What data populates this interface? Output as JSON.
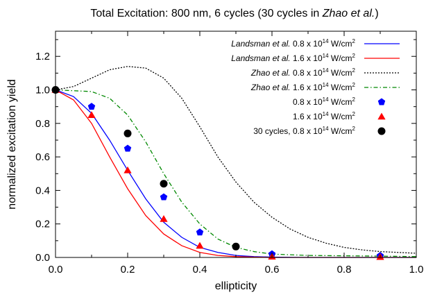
{
  "chart_data": {
    "type": "line",
    "title_parts": [
      {
        "text": "Total Excitation: 800 nm, 6 cycles (30 cycles in ",
        "italic": false
      },
      {
        "text": "Zhao et al.",
        "italic": true
      },
      {
        "text": ")",
        "italic": false
      }
    ],
    "xlabel": "ellipticity",
    "ylabel": "normalized excitation yield",
    "xlim": [
      0,
      1
    ],
    "ylim": [
      0,
      1.35
    ],
    "xticks": [
      0,
      0.2,
      0.4,
      0.6,
      0.8,
      1
    ],
    "xtick_labels": [
      "0.0",
      "0.2",
      "0.4",
      "0.6",
      "0.8",
      "1.0"
    ],
    "yticks": [
      0,
      0.2,
      0.4,
      0.6,
      0.8,
      1,
      1.2
    ],
    "ytick_labels": [
      "0.0",
      "0.2",
      "0.4",
      "0.6",
      "0.8",
      "1.0",
      "1.2"
    ],
    "grid": false,
    "legend_position": "top-right",
    "series": [
      {
        "name": "Landsman et al. 0.8 x 10^14 W/cm^2",
        "legend_parts": [
          {
            "text": "Landsman et al.",
            "italic": true
          },
          {
            "text": " 0.8 x 10",
            "italic": false
          },
          {
            "text": "14",
            "sup": true
          },
          {
            "text": " W/cm",
            "italic": false
          },
          {
            "text": "2",
            "sup": true
          }
        ],
        "kind": "line",
        "color": "#0000ff",
        "dash": "",
        "x": [
          0,
          0.05,
          0.1,
          0.15,
          0.2,
          0.25,
          0.3,
          0.35,
          0.4,
          0.45,
          0.5,
          0.55,
          0.6,
          0.7,
          0.8,
          0.9,
          1.0
        ],
        "y": [
          1.0,
          0.96,
          0.86,
          0.7,
          0.52,
          0.35,
          0.21,
          0.12,
          0.06,
          0.03,
          0.012,
          0.005,
          0.002,
          0.0,
          0.0,
          0.0,
          0.0
        ]
      },
      {
        "name": "Landsman et al. 1.6 x 10^14 W/cm^2",
        "legend_parts": [
          {
            "text": "Landsman et al.",
            "italic": true
          },
          {
            "text": " 1.6 x 10",
            "italic": false
          },
          {
            "text": "14",
            "sup": true
          },
          {
            "text": " W/cm",
            "italic": false
          },
          {
            "text": "2",
            "sup": true
          }
        ],
        "kind": "line",
        "color": "#ff0000",
        "dash": "",
        "x": [
          0,
          0.05,
          0.1,
          0.15,
          0.2,
          0.25,
          0.3,
          0.35,
          0.4,
          0.45,
          0.5,
          0.55,
          0.6,
          0.7,
          0.8,
          0.9,
          1.0
        ],
        "y": [
          1.0,
          0.94,
          0.8,
          0.6,
          0.41,
          0.25,
          0.14,
          0.07,
          0.03,
          0.012,
          0.005,
          0.002,
          0.0,
          0.0,
          0.0,
          0.0,
          0.0
        ]
      },
      {
        "name": "Zhao et al. 0.8 x 10^14 W/cm^2",
        "legend_parts": [
          {
            "text": "Zhao et al.",
            "italic": true
          },
          {
            "text": " 0.8 x 10",
            "italic": false
          },
          {
            "text": "14",
            "sup": true
          },
          {
            "text": " W/cm",
            "italic": false
          },
          {
            "text": "2",
            "sup": true
          }
        ],
        "kind": "line",
        "color": "#000000",
        "dash": "2,2",
        "x": [
          0,
          0.05,
          0.1,
          0.15,
          0.2,
          0.25,
          0.3,
          0.35,
          0.4,
          0.45,
          0.5,
          0.55,
          0.6,
          0.65,
          0.7,
          0.75,
          0.8,
          0.85,
          0.9,
          0.95,
          1.0
        ],
        "y": [
          1.0,
          1.02,
          1.07,
          1.12,
          1.14,
          1.13,
          1.07,
          0.95,
          0.78,
          0.6,
          0.45,
          0.33,
          0.24,
          0.17,
          0.12,
          0.085,
          0.06,
          0.045,
          0.035,
          0.03,
          0.025
        ]
      },
      {
        "name": "Zhao et al. 1.6 x 10^14 W/cm^2",
        "legend_parts": [
          {
            "text": "Zhao et al.",
            "italic": true
          },
          {
            "text": " 1.6 x 10",
            "italic": false
          },
          {
            "text": "14",
            "sup": true
          },
          {
            "text": " W/cm",
            "italic": false
          },
          {
            "text": "2",
            "sup": true
          }
        ],
        "kind": "line",
        "color": "#008800",
        "dash": "6,3,1.5,3",
        "x": [
          0,
          0.05,
          0.1,
          0.15,
          0.2,
          0.25,
          0.3,
          0.35,
          0.4,
          0.45,
          0.5,
          0.55,
          0.6,
          0.7,
          0.8,
          0.9,
          1.0
        ],
        "y": [
          1.0,
          0.995,
          0.99,
          0.95,
          0.85,
          0.69,
          0.5,
          0.33,
          0.2,
          0.11,
          0.06,
          0.035,
          0.02,
          0.012,
          0.01,
          0.008,
          0.005
        ]
      },
      {
        "name": "0.8 x 10^14 W/cm^2",
        "legend_parts": [
          {
            "text": "0.8 x 10",
            "italic": false
          },
          {
            "text": "14",
            "sup": true
          },
          {
            "text": " W/cm",
            "italic": false
          },
          {
            "text": "2",
            "sup": true
          }
        ],
        "kind": "points",
        "marker": "pentagon",
        "color": "#0000ff",
        "x": [
          0,
          0.1,
          0.2,
          0.3,
          0.4,
          0.6,
          0.9
        ],
        "y": [
          1.0,
          0.9,
          0.65,
          0.36,
          0.15,
          0.02,
          0.01
        ]
      },
      {
        "name": "1.6 x 10^14 W/cm^2",
        "legend_parts": [
          {
            "text": "1.6 x 10",
            "italic": false
          },
          {
            "text": "14",
            "sup": true
          },
          {
            "text": " W/cm",
            "italic": false
          },
          {
            "text": "2",
            "sup": true
          }
        ],
        "kind": "points",
        "marker": "triangle",
        "color": "#ff0000",
        "x": [
          0,
          0.1,
          0.2,
          0.3,
          0.4,
          0.6,
          0.9
        ],
        "y": [
          1.0,
          0.85,
          0.52,
          0.23,
          0.07,
          0.005,
          0.003
        ]
      },
      {
        "name": "30 cycles, 0.8 x 10^14 W/cm^2",
        "legend_parts": [
          {
            "text": "30 cycles, 0.8 x 10",
            "italic": false
          },
          {
            "text": "14",
            "sup": true
          },
          {
            "text": " W/cm",
            "italic": false
          },
          {
            "text": "2",
            "sup": true
          }
        ],
        "kind": "points",
        "marker": "circle",
        "color": "#000000",
        "x": [
          0,
          0.2,
          0.3,
          0.5
        ],
        "y": [
          1.0,
          0.74,
          0.44,
          0.065
        ]
      }
    ]
  }
}
